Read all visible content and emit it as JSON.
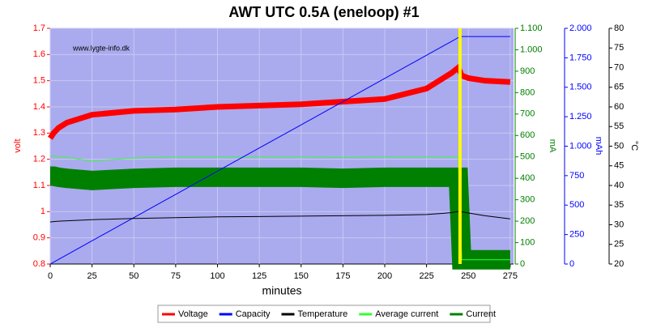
{
  "chart_data": {
    "type": "line",
    "title": "AWT UTC 0.5A (eneloop) #1",
    "watermark": "www.lygte-info.dk",
    "x_label": "minutes",
    "y_label": "volt",
    "y2_label": "mA",
    "y3_label": "mAh",
    "y4_label": "°C",
    "x": [
      0,
      2,
      5,
      10,
      25,
      50,
      75,
      100,
      125,
      150,
      175,
      200,
      225,
      235,
      240,
      244,
      246,
      250,
      260,
      275
    ],
    "xlim": [
      0,
      277
    ],
    "xticks": [
      0,
      25,
      50,
      75,
      100,
      125,
      150,
      175,
      200,
      225,
      250,
      275
    ],
    "ylim": [
      0.8,
      1.7
    ],
    "yticks": [
      0.8,
      0.9,
      1.0,
      1.1,
      1.2,
      1.3,
      1.4,
      1.5,
      1.6,
      1.7
    ],
    "y2lim": [
      0,
      1100
    ],
    "y2ticks": [
      0,
      100,
      200,
      300,
      400,
      500,
      600,
      700,
      800,
      900,
      {
        "value": 1000,
        "label": "1.000"
      },
      {
        "value": 1100,
        "label": "1.100"
      }
    ],
    "y3lim": [
      0,
      2000
    ],
    "y3ticks": [
      0,
      250,
      500,
      750,
      {
        "value": 1000,
        "label": "1.000"
      },
      {
        "value": 1250,
        "label": "1.250"
      },
      {
        "value": 1500,
        "label": "1.500"
      },
      {
        "value": 1750,
        "label": "1.750"
      },
      {
        "value": 2000,
        "label": "2.000"
      }
    ],
    "y4lim": [
      20,
      80
    ],
    "y4ticks": [
      20,
      25,
      30,
      35,
      40,
      45,
      50,
      55,
      60,
      65,
      70,
      75,
      80
    ],
    "end_marker": 245,
    "grid": true,
    "series": [
      {
        "name": "Voltage",
        "color": "#ff0000",
        "axis": "y",
        "values": [
          1.28,
          1.3,
          1.32,
          1.34,
          1.37,
          1.385,
          1.39,
          1.4,
          1.405,
          1.41,
          1.42,
          1.43,
          1.47,
          1.51,
          1.53,
          1.55,
          1.52,
          1.51,
          1.5,
          1.495
        ]
      },
      {
        "name": "Capacity",
        "color": "#0000ff",
        "axis": "y3",
        "values": [
          0,
          16,
          39,
          79,
          197,
          394,
          591,
          788,
          985,
          1181,
          1378,
          1575,
          1772,
          1851,
          1890,
          1922,
          1930,
          1930,
          1930,
          1930
        ]
      },
      {
        "name": "Temperature",
        "color": "#000000",
        "axis": "y4",
        "values": [
          30.7,
          30.8,
          30.9,
          31.0,
          31.3,
          31.6,
          31.8,
          32.0,
          32.1,
          32.2,
          32.3,
          32.4,
          32.6,
          32.9,
          33.1,
          33.4,
          33.3,
          33.0,
          32.3,
          31.5
        ]
      },
      {
        "name": "Average current",
        "color": "#33ff33",
        "axis": "y2",
        "values": [
          503,
          505,
          500,
          498,
          480,
          495,
          500,
          500,
          500,
          500,
          497,
          500,
          500,
          500,
          500,
          500,
          20,
          20,
          20,
          20
        ]
      },
      {
        "name": "Current",
        "color": "#008000",
        "axis": "y2",
        "values": [
          410,
          410,
          405,
          400,
          390,
          400,
          405,
          405,
          405,
          405,
          400,
          405,
          405,
          405,
          405,
          405,
          20,
          20,
          20,
          20
        ]
      }
    ]
  }
}
